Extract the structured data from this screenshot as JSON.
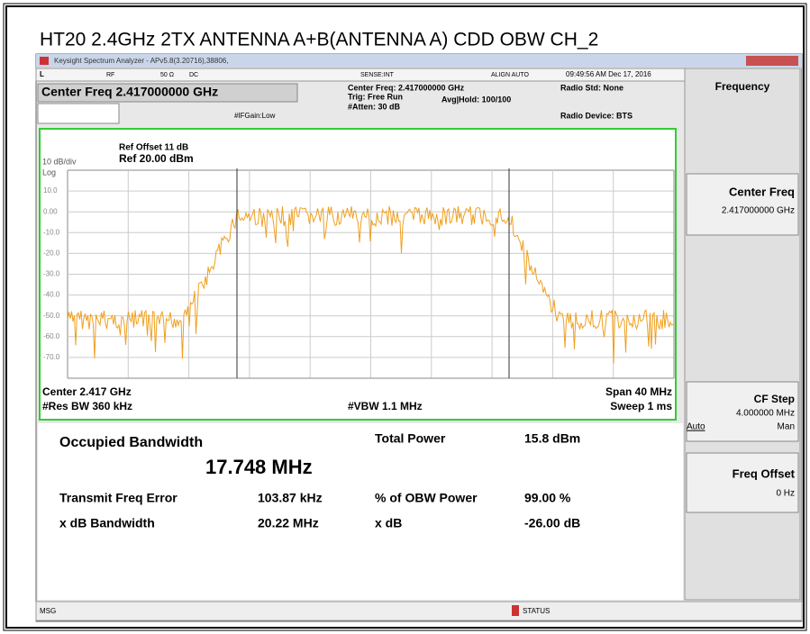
{
  "header": {
    "title": "HT20 2.4GHz 2TX ANTENNA A+B(ANTENNA A) CDD OBW CH_2"
  },
  "window": {
    "title": "Keysight Spectrum Analyzer - APv5.8(3.20716),38806,"
  },
  "status_row": {
    "mode": "L",
    "rf": "RF",
    "impedance": "50 Ω",
    "coupling": "DC",
    "sense": "SENSE:INT",
    "align": "ALIGN AUTO",
    "timestamp": "09:49:56 AM Dec 17, 2016"
  },
  "settings": {
    "center_freq_box": "Center Freq 2.417000000 GHz",
    "center_freq": "Center Freq: 2.417000000 GHz",
    "trig": "Trig: Free Run",
    "atten": "#Atten: 30 dB",
    "avg_hold": "Avg|Hold: 100/100",
    "if_gain": "#IFGain:Low",
    "radio_std": "Radio Std: None",
    "radio_device": "Radio Device: BTS"
  },
  "graph": {
    "ref_offset": "Ref Offset 11 dB",
    "ref_level": "Ref 20.00 dBm",
    "scale": "10 dB/div",
    "log": "Log",
    "y_labels": [
      "10.0",
      "0.00",
      "-10.0",
      "-20.0",
      "-30.0",
      "-40.0",
      "-50.0",
      "-60.0",
      "-70.0"
    ],
    "center": "Center 2.417 GHz",
    "res_bw": "#Res BW 360 kHz",
    "vbw": "#VBW 1.1 MHz",
    "span": "Span 40 MHz",
    "sweep": "Sweep 1 ms"
  },
  "results": {
    "obw_label": "Occupied Bandwidth",
    "obw_value": "17.748 MHz",
    "total_power_label": "Total Power",
    "total_power_value": "15.8 dBm",
    "freq_error_label": "Transmit Freq Error",
    "freq_error_value": "103.87 kHz",
    "obw_power_label": "% of OBW Power",
    "obw_power_value": "99.00 %",
    "xdb_bw_label": "x dB Bandwidth",
    "xdb_bw_value": "20.22 MHz",
    "xdb_label": "x dB",
    "xdb_value": "-26.00 dB"
  },
  "menu": {
    "title": "Frequency",
    "center_freq": "Center Freq",
    "center_freq_value": "2.417000000 GHz",
    "cf_step": "CF Step",
    "cf_step_value": "4.000000 MHz",
    "auto": "Auto",
    "man": "Man",
    "freq_offset": "Freq Offset",
    "freq_offset_value": "0 Hz"
  },
  "bottom_bar": {
    "msg": "MSG",
    "status": "STATUS"
  }
}
